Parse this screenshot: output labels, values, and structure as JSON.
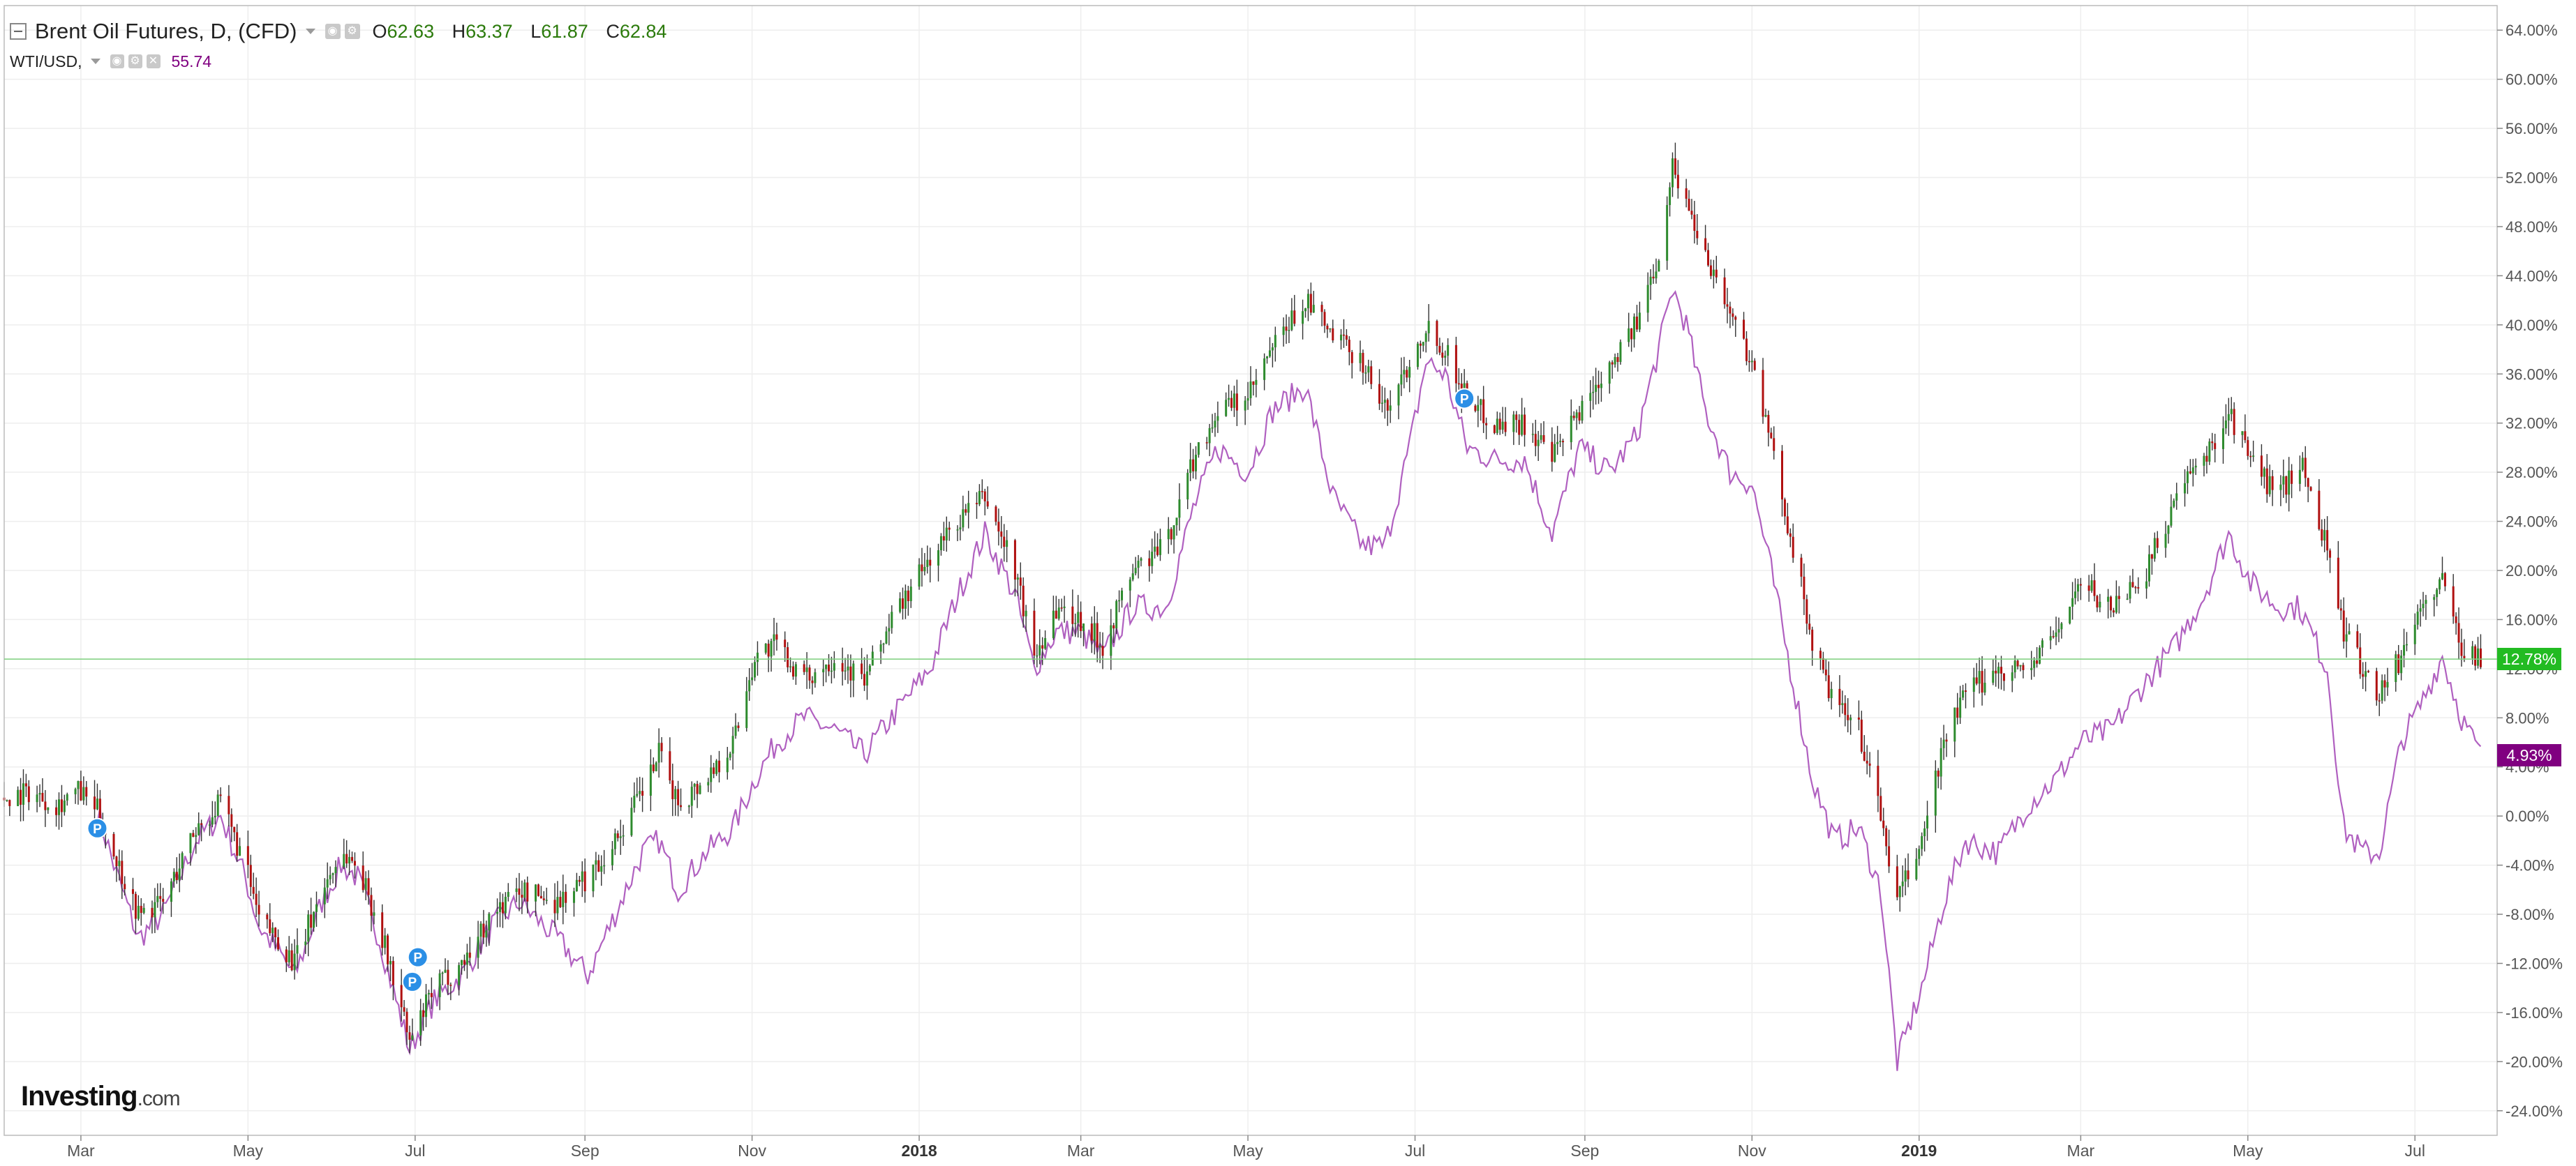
{
  "header": {
    "main_symbol": "Brent Oil Futures, D, (CFD)",
    "ohlc": [
      {
        "key": "O",
        "value": "62.63"
      },
      {
        "key": "H",
        "value": "63.37"
      },
      {
        "key": "L",
        "value": "61.87"
      },
      {
        "key": "C",
        "value": "62.84"
      }
    ],
    "compare_symbol": "WTI/USD,",
    "compare_value": "55.74",
    "icons": [
      "collapse-icon",
      "chevron-down-icon",
      "settings-icon",
      "eye-icon",
      "close-icon"
    ]
  },
  "watermark": {
    "bold": "Investing",
    "suffix": ".com"
  },
  "badges": {
    "brent": {
      "text": "12.78%",
      "value": 12.78,
      "color": "#22bb22"
    },
    "wti": {
      "text": "4.93%",
      "value": 4.93,
      "color": "#800080"
    }
  },
  "colors": {
    "up": "#2e8b2e",
    "down": "#b01010",
    "wick": "#333333",
    "wti_line": "#b060c0",
    "grid": "#eeeeee",
    "axis": "#555555"
  },
  "chart_data": {
    "type": "candlestick",
    "title": "",
    "xlabel": "",
    "ylabel": "",
    "x_range": [
      "2017-02-01",
      "2019-07-31"
    ],
    "y_range": [
      -26,
      66
    ],
    "y_ticks": [
      "64.00%",
      "60.00%",
      "56.00%",
      "52.00%",
      "48.00%",
      "44.00%",
      "40.00%",
      "36.00%",
      "32.00%",
      "28.00%",
      "24.00%",
      "20.00%",
      "16.00%",
      "12.00%",
      "8.00%",
      "4.00%",
      "0.00%",
      "-4.00%",
      "-8.00%",
      "-12.00%",
      "-16.00%",
      "-20.00%",
      "-24.00%"
    ],
    "x_ticks": [
      {
        "date": "2017-03-01",
        "label": "Mar",
        "bold": false
      },
      {
        "date": "2017-05-01",
        "label": "May",
        "bold": false
      },
      {
        "date": "2017-07-01",
        "label": "Jul",
        "bold": false
      },
      {
        "date": "2017-09-01",
        "label": "Sep",
        "bold": false
      },
      {
        "date": "2017-11-01",
        "label": "Nov",
        "bold": false
      },
      {
        "date": "2018-01-01",
        "label": "2018",
        "bold": true
      },
      {
        "date": "2018-03-01",
        "label": "Mar",
        "bold": false
      },
      {
        "date": "2018-05-01",
        "label": "May",
        "bold": false
      },
      {
        "date": "2018-07-01",
        "label": "Jul",
        "bold": false
      },
      {
        "date": "2018-09-01",
        "label": "Sep",
        "bold": false
      },
      {
        "date": "2018-11-01",
        "label": "Nov",
        "bold": false
      },
      {
        "date": "2019-01-01",
        "label": "2019",
        "bold": true
      },
      {
        "date": "2019-03-01",
        "label": "Mar",
        "bold": false
      },
      {
        "date": "2019-05-01",
        "label": "May",
        "bold": false
      },
      {
        "date": "2019-07-01",
        "label": "Jul",
        "bold": false
      }
    ],
    "y_unit": "% change",
    "grid": true,
    "series": [
      {
        "name": "Brent Oil Futures, D, (CFD)",
        "kind": "candlestick",
        "points": [
          [
            "2017-02-01",
            1.5
          ],
          [
            "2017-02-10",
            2.0
          ],
          [
            "2017-02-20",
            1.0
          ],
          [
            "2017-02-28",
            2.0
          ],
          [
            "2017-03-07",
            0.5
          ],
          [
            "2017-03-13",
            -3.0
          ],
          [
            "2017-03-22",
            -8.0
          ],
          [
            "2017-03-31",
            -7.0
          ],
          [
            "2017-04-12",
            -1.0
          ],
          [
            "2017-04-21",
            1.0
          ],
          [
            "2017-04-30",
            -4.0
          ],
          [
            "2017-05-05",
            -8.5
          ],
          [
            "2017-05-12",
            -10.0
          ],
          [
            "2017-05-18",
            -12.0
          ],
          [
            "2017-05-28",
            -6.0
          ],
          [
            "2017-06-04",
            -3.0
          ],
          [
            "2017-06-10",
            -4.0
          ],
          [
            "2017-06-18",
            -9.0
          ],
          [
            "2017-06-24",
            -14.0
          ],
          [
            "2017-06-29",
            -18.5
          ],
          [
            "2017-07-08",
            -14.0
          ],
          [
            "2017-07-18",
            -12.0
          ],
          [
            "2017-07-29",
            -8.0
          ],
          [
            "2017-08-08",
            -6.0
          ],
          [
            "2017-08-22",
            -7.0
          ],
          [
            "2017-09-02",
            -5.0
          ],
          [
            "2017-09-12",
            -2.0
          ],
          [
            "2017-09-22",
            2.0
          ],
          [
            "2017-09-28",
            5.0
          ],
          [
            "2017-10-05",
            1.0
          ],
          [
            "2017-10-15",
            3.0
          ],
          [
            "2017-10-25",
            6.0
          ],
          [
            "2017-11-02",
            13.0
          ],
          [
            "2017-11-10",
            14.0
          ],
          [
            "2017-11-20",
            11.0
          ],
          [
            "2017-12-01",
            13.0
          ],
          [
            "2017-12-12",
            11.0
          ],
          [
            "2017-12-22",
            16.0
          ],
          [
            "2018-01-05",
            21.0
          ],
          [
            "2018-01-15",
            24.0
          ],
          [
            "2018-01-25",
            26.0
          ],
          [
            "2018-02-05",
            20.0
          ],
          [
            "2018-02-12",
            13.0
          ],
          [
            "2018-02-20",
            17.0
          ],
          [
            "2018-03-01",
            16.0
          ],
          [
            "2018-03-09",
            14.0
          ],
          [
            "2018-03-20",
            20.0
          ],
          [
            "2018-04-01",
            22.0
          ],
          [
            "2018-04-11",
            29.0
          ],
          [
            "2018-04-20",
            33.0
          ],
          [
            "2018-05-01",
            34.0
          ],
          [
            "2018-05-10",
            38.0
          ],
          [
            "2018-05-22",
            42.0
          ],
          [
            "2018-06-01",
            39.0
          ],
          [
            "2018-06-12",
            37.0
          ],
          [
            "2018-06-20",
            33.0
          ],
          [
            "2018-06-29",
            37.0
          ],
          [
            "2018-07-05",
            40.0
          ],
          [
            "2018-07-12",
            38.0
          ],
          [
            "2018-07-20",
            34.0
          ],
          [
            "2018-07-30",
            32.0
          ],
          [
            "2018-08-10",
            32.0
          ],
          [
            "2018-08-20",
            29.0
          ],
          [
            "2018-08-30",
            33.0
          ],
          [
            "2018-09-10",
            37.0
          ],
          [
            "2018-09-20",
            40.0
          ],
          [
            "2018-09-28",
            46.0
          ],
          [
            "2018-10-03",
            53.0
          ],
          [
            "2018-10-08",
            50.0
          ],
          [
            "2018-10-15",
            46.0
          ],
          [
            "2018-10-24",
            41.0
          ],
          [
            "2018-11-01",
            37.0
          ],
          [
            "2018-11-08",
            30.0
          ],
          [
            "2018-11-15",
            23.0
          ],
          [
            "2018-11-23",
            14.0
          ],
          [
            "2018-12-01",
            9.0
          ],
          [
            "2018-12-10",
            7.0
          ],
          [
            "2018-12-18",
            0.0
          ],
          [
            "2018-12-24",
            -7.0
          ],
          [
            "2019-01-02",
            -2.0
          ],
          [
            "2019-01-10",
            6.0
          ],
          [
            "2019-01-18",
            10.0
          ],
          [
            "2019-01-30",
            12.0
          ],
          [
            "2019-02-10",
            12.0
          ],
          [
            "2019-02-20",
            15.0
          ],
          [
            "2019-03-01",
            19.0
          ],
          [
            "2019-03-12",
            17.0
          ],
          [
            "2019-03-25",
            20.0
          ],
          [
            "2019-04-05",
            26.0
          ],
          [
            "2019-04-15",
            29.0
          ],
          [
            "2019-04-24",
            33.0
          ],
          [
            "2019-05-02",
            29.0
          ],
          [
            "2019-05-12",
            26.0
          ],
          [
            "2019-05-20",
            29.0
          ],
          [
            "2019-05-30",
            22.0
          ],
          [
            "2019-06-05",
            15.0
          ],
          [
            "2019-06-12",
            12.0
          ],
          [
            "2019-06-18",
            10.0
          ],
          [
            "2019-06-26",
            13.0
          ],
          [
            "2019-07-03",
            17.0
          ],
          [
            "2019-07-11",
            19.0
          ],
          [
            "2019-07-18",
            14.0
          ],
          [
            "2019-07-25",
            12.78
          ]
        ]
      },
      {
        "name": "WTI/USD,",
        "kind": "line",
        "points": [
          [
            "2017-03-07",
            0.5
          ],
          [
            "2017-03-13",
            -4.0
          ],
          [
            "2017-03-22",
            -10.0
          ],
          [
            "2017-03-31",
            -8.0
          ],
          [
            "2017-04-12",
            -2.0
          ],
          [
            "2017-04-21",
            0.0
          ],
          [
            "2017-04-30",
            -5.0
          ],
          [
            "2017-05-05",
            -9.0
          ],
          [
            "2017-05-12",
            -11.0
          ],
          [
            "2017-05-18",
            -13.0
          ],
          [
            "2017-05-28",
            -7.0
          ],
          [
            "2017-06-04",
            -4.0
          ],
          [
            "2017-06-10",
            -5.0
          ],
          [
            "2017-06-18",
            -10.0
          ],
          [
            "2017-06-24",
            -15.0
          ],
          [
            "2017-06-29",
            -19.0
          ],
          [
            "2017-07-08",
            -15.0
          ],
          [
            "2017-07-18",
            -13.0
          ],
          [
            "2017-07-29",
            -9.0
          ],
          [
            "2017-08-08",
            -7.0
          ],
          [
            "2017-08-22",
            -10.0
          ],
          [
            "2017-09-02",
            -13.0
          ],
          [
            "2017-09-12",
            -8.0
          ],
          [
            "2017-09-22",
            -3.0
          ],
          [
            "2017-09-28",
            -2.0
          ],
          [
            "2017-10-05",
            -6.0
          ],
          [
            "2017-10-15",
            -3.0
          ],
          [
            "2017-10-25",
            -1.0
          ],
          [
            "2017-11-02",
            3.0
          ],
          [
            "2017-11-10",
            6.0
          ],
          [
            "2017-11-20",
            8.0
          ],
          [
            "2017-12-01",
            7.0
          ],
          [
            "2017-12-12",
            5.0
          ],
          [
            "2017-12-22",
            8.0
          ],
          [
            "2018-01-05",
            12.0
          ],
          [
            "2018-01-15",
            18.0
          ],
          [
            "2018-01-25",
            23.0
          ],
          [
            "2018-02-05",
            18.0
          ],
          [
            "2018-02-12",
            12.0
          ],
          [
            "2018-02-20",
            15.0
          ],
          [
            "2018-03-01",
            15.0
          ],
          [
            "2018-03-09",
            13.0
          ],
          [
            "2018-03-20",
            17.0
          ],
          [
            "2018-04-01",
            17.0
          ],
          [
            "2018-04-11",
            25.0
          ],
          [
            "2018-04-20",
            30.0
          ],
          [
            "2018-05-01",
            28.0
          ],
          [
            "2018-05-10",
            33.0
          ],
          [
            "2018-05-22",
            35.0
          ],
          [
            "2018-06-01",
            26.0
          ],
          [
            "2018-06-12",
            22.0
          ],
          [
            "2018-06-20",
            22.0
          ],
          [
            "2018-06-29",
            30.0
          ],
          [
            "2018-07-05",
            37.0
          ],
          [
            "2018-07-12",
            36.0
          ],
          [
            "2018-07-20",
            30.0
          ],
          [
            "2018-07-30",
            29.0
          ],
          [
            "2018-08-10",
            29.0
          ],
          [
            "2018-08-20",
            23.0
          ],
          [
            "2018-08-30",
            30.0
          ],
          [
            "2018-09-10",
            28.0
          ],
          [
            "2018-09-20",
            31.0
          ],
          [
            "2018-09-28",
            38.0
          ],
          [
            "2018-10-03",
            43.0
          ],
          [
            "2018-10-08",
            40.0
          ],
          [
            "2018-10-15",
            33.0
          ],
          [
            "2018-10-24",
            28.0
          ],
          [
            "2018-11-01",
            27.0
          ],
          [
            "2018-11-08",
            20.0
          ],
          [
            "2018-11-15",
            12.0
          ],
          [
            "2018-11-23",
            3.0
          ],
          [
            "2018-12-01",
            -2.0
          ],
          [
            "2018-12-10",
            -1.0
          ],
          [
            "2018-12-18",
            -6.0
          ],
          [
            "2018-12-24",
            -20.0
          ],
          [
            "2019-01-02",
            -14.0
          ],
          [
            "2019-01-10",
            -7.0
          ],
          [
            "2019-01-18",
            -2.0
          ],
          [
            "2019-01-30",
            -3.0
          ],
          [
            "2019-02-10",
            1.0
          ],
          [
            "2019-02-20",
            3.0
          ],
          [
            "2019-03-01",
            6.0
          ],
          [
            "2019-03-12",
            7.0
          ],
          [
            "2019-03-25",
            11.0
          ],
          [
            "2019-04-05",
            14.0
          ],
          [
            "2019-04-15",
            18.0
          ],
          [
            "2019-04-24",
            23.0
          ],
          [
            "2019-05-02",
            19.0
          ],
          [
            "2019-05-12",
            17.0
          ],
          [
            "2019-05-20",
            17.0
          ],
          [
            "2019-05-30",
            12.0
          ],
          [
            "2019-06-05",
            -1.0
          ],
          [
            "2019-06-12",
            -3.0
          ],
          [
            "2019-06-18",
            -3.0
          ],
          [
            "2019-06-26",
            6.0
          ],
          [
            "2019-07-03",
            9.0
          ],
          [
            "2019-07-11",
            13.0
          ],
          [
            "2019-07-18",
            8.0
          ],
          [
            "2019-07-25",
            4.93
          ]
        ]
      }
    ],
    "event_markers": [
      {
        "date": "2017-03-07",
        "value": -1.0,
        "label": "P"
      },
      {
        "date": "2017-06-30",
        "value": -13.5,
        "label": "P"
      },
      {
        "date": "2017-07-02",
        "value": -11.5,
        "label": "P"
      },
      {
        "date": "2018-07-19",
        "value": 34.0,
        "label": "P"
      }
    ],
    "last_value_lines": [
      {
        "series": "Brent Oil Futures, D, (CFD)",
        "value": 12.78
      }
    ]
  }
}
